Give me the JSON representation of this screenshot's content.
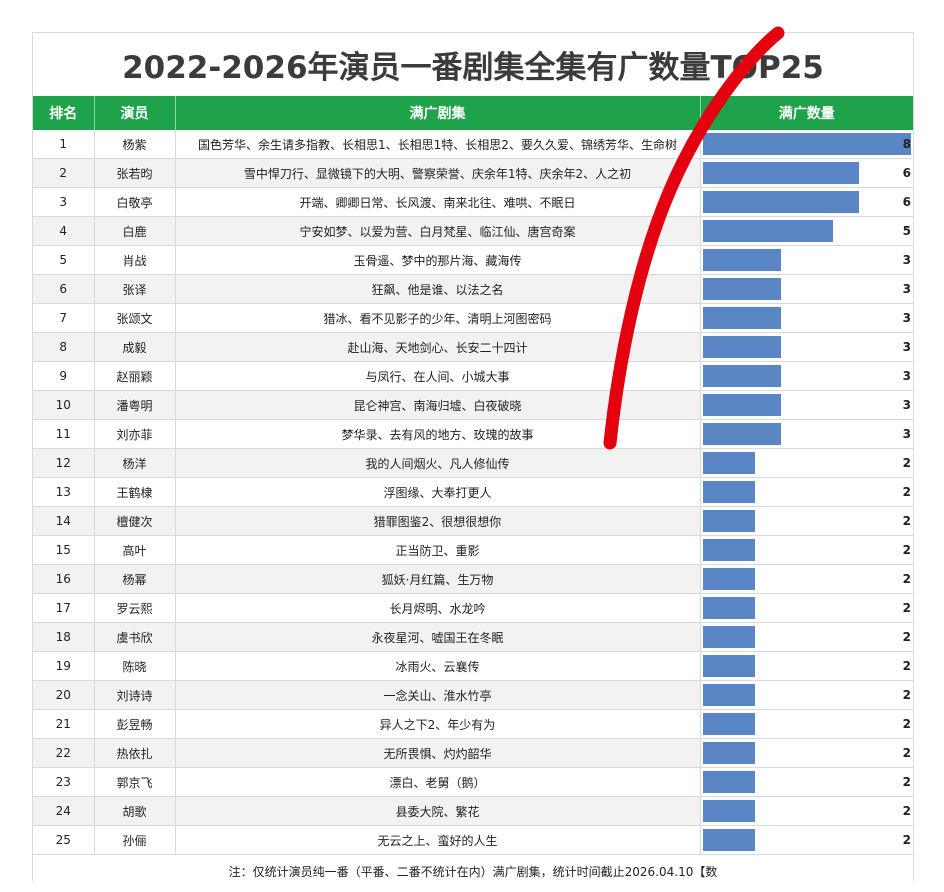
{
  "title": "2022-2026年演员一番剧集全集有广数量TOP25",
  "headers": {
    "rank": "排名",
    "actor": "演员",
    "dramas": "满广剧集",
    "count": "满广数量"
  },
  "rows": [
    {
      "rank": "1",
      "actor": "杨紫",
      "dramas": "国色芳华、余生请多指教、长相思1、长相思1特、长相思2、要久久爱、锦绣芳华、生命树",
      "count": 8
    },
    {
      "rank": "2",
      "actor": "张若昀",
      "dramas": "雪中悍刀行、显微镜下的大明、警察荣誉、庆余年1特、庆余年2、人之初",
      "count": 6
    },
    {
      "rank": "3",
      "actor": "白敬亭",
      "dramas": "开端、卿卿日常、长风渡、南来北往、难哄、不眠日",
      "count": 6
    },
    {
      "rank": "4",
      "actor": "白鹿",
      "dramas": "宁安如梦、以爱为营、白月梵星、临江仙、唐宫奇案",
      "count": 5
    },
    {
      "rank": "5",
      "actor": "肖战",
      "dramas": "玉骨遥、梦中的那片海、藏海传",
      "count": 3
    },
    {
      "rank": "6",
      "actor": "张译",
      "dramas": "狂飙、他是谁、以法之名",
      "count": 3
    },
    {
      "rank": "7",
      "actor": "张颂文",
      "dramas": "猎冰、看不见影子的少年、清明上河图密码",
      "count": 3
    },
    {
      "rank": "8",
      "actor": "成毅",
      "dramas": "赴山海、天地剑心、长安二十四计",
      "count": 3
    },
    {
      "rank": "9",
      "actor": "赵丽颖",
      "dramas": "与凤行、在人间、小城大事",
      "count": 3
    },
    {
      "rank": "10",
      "actor": "潘粤明",
      "dramas": "昆仑神宫、南海归墟、白夜破晓",
      "count": 3
    },
    {
      "rank": "11",
      "actor": "刘亦菲",
      "dramas": "梦华录、去有风的地方、玫瑰的故事",
      "count": 3
    },
    {
      "rank": "12",
      "actor": "杨洋",
      "dramas": "我的人间烟火、凡人修仙传",
      "count": 2
    },
    {
      "rank": "13",
      "actor": "王鹤棣",
      "dramas": "浮图缘、大奉打更人",
      "count": 2
    },
    {
      "rank": "14",
      "actor": "檀健次",
      "dramas": "猎罪图鉴2、很想很想你",
      "count": 2
    },
    {
      "rank": "15",
      "actor": "高叶",
      "dramas": "正当防卫、重影",
      "count": 2
    },
    {
      "rank": "16",
      "actor": "杨幂",
      "dramas": "狐妖·月红篇、生万物",
      "count": 2
    },
    {
      "rank": "17",
      "actor": "罗云熙",
      "dramas": "长月烬明、水龙吟",
      "count": 2
    },
    {
      "rank": "18",
      "actor": "虞书欣",
      "dramas": "永夜星河、嘘国王在冬眠",
      "count": 2
    },
    {
      "rank": "19",
      "actor": "陈晓",
      "dramas": "冰雨火、云襄传",
      "count": 2
    },
    {
      "rank": "20",
      "actor": "刘诗诗",
      "dramas": "一念关山、淮水竹亭",
      "count": 2
    },
    {
      "rank": "21",
      "actor": "彭昱畅",
      "dramas": "异人之下2、年少有为",
      "count": 2
    },
    {
      "rank": "22",
      "actor": "热依扎",
      "dramas": "无所畏惧、灼灼韶华",
      "count": 2
    },
    {
      "rank": "23",
      "actor": "郭京飞",
      "dramas": "漂白、老舅（鹅）",
      "count": 2
    },
    {
      "rank": "24",
      "actor": "胡歌",
      "dramas": "县委大院、繁花",
      "count": 2
    },
    {
      "rank": "25",
      "actor": "孙俪",
      "dramas": "无云之上、蛮好的人生",
      "count": 2
    }
  ],
  "max_count": 8,
  "note": "注：仅统计演员纯一番（平番、二番不统计在内）满广剧集，统计时间截止2026.04.10【数",
  "colors": {
    "header": "#1ea24a",
    "bar": "#5b86c6",
    "stroke": "#e3000f"
  }
}
